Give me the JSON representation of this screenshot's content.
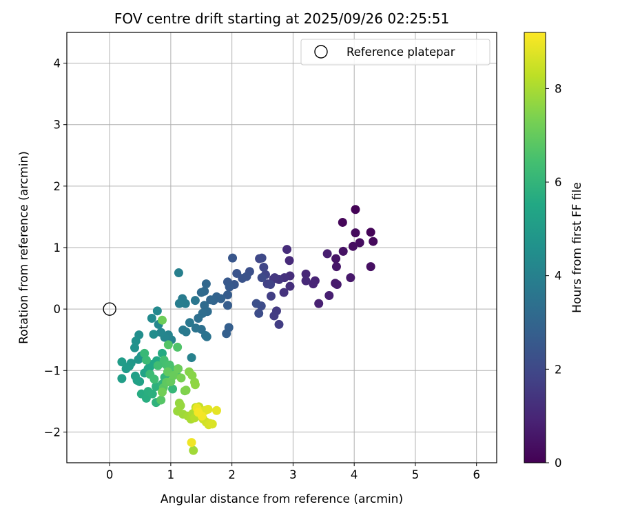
{
  "chart_data": {
    "type": "scatter",
    "title": "FOV centre drift starting at 2025/09/26 02:25:51",
    "xlabel": "Angular distance from reference (arcmin)",
    "ylabel": "Rotation from reference (arcmin)",
    "xlim": [
      -0.7,
      6.33
    ],
    "ylim": [
      -2.5,
      4.5
    ],
    "xticks": [
      0,
      1,
      2,
      3,
      4,
      5,
      6
    ],
    "yticks": [
      -2,
      -1,
      0,
      1,
      2,
      3,
      4
    ],
    "grid": true,
    "legend": {
      "position": "top-right",
      "entries": [
        "Reference platepar"
      ]
    },
    "reference_point": {
      "x": 0,
      "y": 0,
      "label": "Reference platepar"
    },
    "colorbar": {
      "label": "Hours from first FF file",
      "colormap": "viridis",
      "range": [
        0,
        9.2
      ],
      "ticks": [
        0,
        2,
        4,
        6,
        8
      ]
    },
    "points": [
      {
        "x": 4.02,
        "y": 1.62,
        "t": 0.05
      },
      {
        "x": 4.27,
        "y": 1.25,
        "t": 0.1
      },
      {
        "x": 3.81,
        "y": 1.41,
        "t": 0.15
      },
      {
        "x": 4.31,
        "y": 1.1,
        "t": 0.2
      },
      {
        "x": 4.02,
        "y": 1.24,
        "t": 0.25
      },
      {
        "x": 4.09,
        "y": 1.08,
        "t": 0.3
      },
      {
        "x": 3.98,
        "y": 1.02,
        "t": 0.35
      },
      {
        "x": 4.27,
        "y": 0.69,
        "t": 0.4
      },
      {
        "x": 3.82,
        "y": 0.94,
        "t": 0.45
      },
      {
        "x": 3.7,
        "y": 0.82,
        "t": 0.5
      },
      {
        "x": 3.71,
        "y": 0.69,
        "t": 0.55
      },
      {
        "x": 3.94,
        "y": 0.51,
        "t": 0.6
      },
      {
        "x": 3.69,
        "y": 0.42,
        "t": 0.65
      },
      {
        "x": 3.72,
        "y": 0.4,
        "t": 0.7
      },
      {
        "x": 3.56,
        "y": 0.9,
        "t": 0.75
      },
      {
        "x": 3.59,
        "y": 0.22,
        "t": 0.8
      },
      {
        "x": 3.42,
        "y": 0.09,
        "t": 0.85
      },
      {
        "x": 3.36,
        "y": 0.46,
        "t": 0.9
      },
      {
        "x": 3.33,
        "y": 0.41,
        "t": 0.95
      },
      {
        "x": 3.21,
        "y": 0.57,
        "t": 1.0
      },
      {
        "x": 3.21,
        "y": 0.46,
        "t": 1.05
      },
      {
        "x": 2.94,
        "y": 0.79,
        "t": 1.1
      },
      {
        "x": 2.9,
        "y": 0.97,
        "t": 1.15
      },
      {
        "x": 2.95,
        "y": 0.54,
        "t": 1.2
      },
      {
        "x": 2.95,
        "y": 0.37,
        "t": 1.25
      },
      {
        "x": 2.86,
        "y": 0.51,
        "t": 1.3
      },
      {
        "x": 2.85,
        "y": 0.27,
        "t": 1.35
      },
      {
        "x": 2.77,
        "y": 0.48,
        "t": 1.4
      },
      {
        "x": 2.68,
        "y": 0.49,
        "t": 1.45
      },
      {
        "x": 2.7,
        "y": 0.51,
        "t": 1.5
      },
      {
        "x": 2.73,
        "y": -0.03,
        "t": 1.55
      },
      {
        "x": 2.69,
        "y": -0.11,
        "t": 1.6
      },
      {
        "x": 2.77,
        "y": -0.25,
        "t": 1.65
      },
      {
        "x": 2.64,
        "y": 0.21,
        "t": 1.7
      },
      {
        "x": 2.58,
        "y": 0.41,
        "t": 1.75
      },
      {
        "x": 2.63,
        "y": 0.4,
        "t": 1.8
      },
      {
        "x": 2.55,
        "y": 0.56,
        "t": 1.85
      },
      {
        "x": 2.52,
        "y": 0.68,
        "t": 1.9
      },
      {
        "x": 2.45,
        "y": 0.82,
        "t": 1.95
      },
      {
        "x": 2.49,
        "y": 0.83,
        "t": 2.0
      },
      {
        "x": 2.49,
        "y": 0.51,
        "t": 2.05
      },
      {
        "x": 2.48,
        "y": 0.05,
        "t": 2.1
      },
      {
        "x": 2.44,
        "y": -0.07,
        "t": 2.15
      },
      {
        "x": 2.4,
        "y": 0.09,
        "t": 2.2
      },
      {
        "x": 2.29,
        "y": 0.61,
        "t": 2.25
      },
      {
        "x": 2.24,
        "y": 0.53,
        "t": 2.3
      },
      {
        "x": 2.17,
        "y": 0.5,
        "t": 2.35
      },
      {
        "x": 2.08,
        "y": 0.58,
        "t": 2.4
      },
      {
        "x": 2.01,
        "y": 0.83,
        "t": 2.45
      },
      {
        "x": 2.04,
        "y": 0.4,
        "t": 2.5
      },
      {
        "x": 1.93,
        "y": 0.44,
        "t": 2.55
      },
      {
        "x": 1.96,
        "y": 0.36,
        "t": 2.6
      },
      {
        "x": 1.93,
        "y": 0.23,
        "t": 2.65
      },
      {
        "x": 1.93,
        "y": 0.06,
        "t": 2.7
      },
      {
        "x": 1.95,
        "y": -0.3,
        "t": 2.75
      },
      {
        "x": 1.91,
        "y": -0.4,
        "t": 2.8
      },
      {
        "x": 1.82,
        "y": 0.17,
        "t": 2.85
      },
      {
        "x": 1.75,
        "y": 0.2,
        "t": 2.9
      },
      {
        "x": 1.7,
        "y": 0.14,
        "t": 2.95
      },
      {
        "x": 1.65,
        "y": 0.15,
        "t": 3.0
      },
      {
        "x": 1.58,
        "y": 0.41,
        "t": 3.05
      },
      {
        "x": 1.55,
        "y": 0.29,
        "t": 3.1
      },
      {
        "x": 1.5,
        "y": 0.27,
        "t": 3.15
      },
      {
        "x": 1.55,
        "y": 0.06,
        "t": 3.2
      },
      {
        "x": 1.6,
        "y": -0.04,
        "t": 3.25
      },
      {
        "x": 1.52,
        "y": -0.07,
        "t": 3.3
      },
      {
        "x": 1.45,
        "y": -0.15,
        "t": 3.35
      },
      {
        "x": 1.5,
        "y": -0.33,
        "t": 3.4
      },
      {
        "x": 1.57,
        "y": -0.43,
        "t": 3.45
      },
      {
        "x": 1.59,
        "y": -0.45,
        "t": 3.5
      },
      {
        "x": 1.41,
        "y": -0.31,
        "t": 3.55
      },
      {
        "x": 1.4,
        "y": 0.14,
        "t": 3.6
      },
      {
        "x": 1.31,
        "y": -0.22,
        "t": 3.65
      },
      {
        "x": 1.25,
        "y": -0.37,
        "t": 3.7
      },
      {
        "x": 1.2,
        "y": -0.34,
        "t": 3.75
      },
      {
        "x": 1.19,
        "y": 0.17,
        "t": 3.8
      },
      {
        "x": 1.24,
        "y": 0.09,
        "t": 3.85
      },
      {
        "x": 1.14,
        "y": 0.09,
        "t": 3.9
      },
      {
        "x": 1.13,
        "y": 0.59,
        "t": 3.95
      },
      {
        "x": 1.34,
        "y": -0.79,
        "t": 4.0
      },
      {
        "x": 1.01,
        "y": -0.5,
        "t": 4.05
      },
      {
        "x": 0.96,
        "y": -0.42,
        "t": 4.1
      },
      {
        "x": 0.9,
        "y": -0.46,
        "t": 4.15
      },
      {
        "x": 0.84,
        "y": -0.38,
        "t": 4.2
      },
      {
        "x": 0.8,
        "y": -0.25,
        "t": 4.25
      },
      {
        "x": 0.78,
        "y": -0.03,
        "t": 4.3
      },
      {
        "x": 0.69,
        "y": -0.15,
        "t": 4.35
      },
      {
        "x": 0.72,
        "y": -0.41,
        "t": 4.45
      },
      {
        "x": 0.48,
        "y": -0.42,
        "t": 4.5
      },
      {
        "x": 0.43,
        "y": -0.52,
        "t": 4.6
      },
      {
        "x": 0.41,
        "y": -0.63,
        "t": 4.65
      },
      {
        "x": 0.52,
        "y": -0.76,
        "t": 4.75
      },
      {
        "x": 0.47,
        "y": -0.82,
        "t": 4.8
      },
      {
        "x": 0.35,
        "y": -0.88,
        "t": 4.85
      },
      {
        "x": 0.32,
        "y": -0.93,
        "t": 4.9
      },
      {
        "x": 0.27,
        "y": -0.97,
        "t": 5.0
      },
      {
        "x": 0.2,
        "y": -0.86,
        "t": 5.05
      },
      {
        "x": 0.2,
        "y": -1.13,
        "t": 5.1
      },
      {
        "x": 0.42,
        "y": -1.09,
        "t": 5.15
      },
      {
        "x": 0.45,
        "y": -1.16,
        "t": 5.2
      },
      {
        "x": 0.49,
        "y": -1.18,
        "t": 5.25
      },
      {
        "x": 0.57,
        "y": -1.04,
        "t": 5.3
      },
      {
        "x": 0.63,
        "y": -0.97,
        "t": 5.35
      },
      {
        "x": 0.66,
        "y": -0.94,
        "t": 5.4
      },
      {
        "x": 0.7,
        "y": -0.9,
        "t": 5.45
      },
      {
        "x": 0.77,
        "y": -0.84,
        "t": 5.5
      },
      {
        "x": 0.83,
        "y": -0.88,
        "t": 5.55
      },
      {
        "x": 0.86,
        "y": -0.72,
        "t": 5.6
      },
      {
        "x": 0.52,
        "y": -1.38,
        "t": 5.65
      },
      {
        "x": 0.6,
        "y": -1.45,
        "t": 5.7
      },
      {
        "x": 0.63,
        "y": -1.34,
        "t": 5.75
      },
      {
        "x": 0.7,
        "y": -1.38,
        "t": 5.8
      },
      {
        "x": 0.76,
        "y": -1.26,
        "t": 5.85
      },
      {
        "x": 0.76,
        "y": -1.52,
        "t": 5.9
      },
      {
        "x": 0.86,
        "y": -1.22,
        "t": 5.95
      },
      {
        "x": 0.9,
        "y": -1.11,
        "t": 6.0
      },
      {
        "x": 0.96,
        "y": -1.04,
        "t": 6.05
      },
      {
        "x": 1.03,
        "y": -1.3,
        "t": 6.1
      },
      {
        "x": 0.57,
        "y": -0.72,
        "t": 6.15
      },
      {
        "x": 0.6,
        "y": -0.83,
        "t": 6.2
      },
      {
        "x": 0.66,
        "y": -1.06,
        "t": 6.25
      },
      {
        "x": 0.73,
        "y": -1.14,
        "t": 6.3
      },
      {
        "x": 0.79,
        "y": -0.92,
        "t": 6.35
      },
      {
        "x": 0.89,
        "y": -0.83,
        "t": 6.4
      },
      {
        "x": 0.93,
        "y": -0.91,
        "t": 6.45
      },
      {
        "x": 0.98,
        "y": -0.91,
        "t": 6.5
      },
      {
        "x": 1.02,
        "y": -0.98,
        "t": 6.55
      },
      {
        "x": 1.09,
        "y": -1.06,
        "t": 6.6
      },
      {
        "x": 1.11,
        "y": -0.62,
        "t": 6.65
      },
      {
        "x": 0.96,
        "y": -0.58,
        "t": 6.7
      },
      {
        "x": 0.84,
        "y": -1.48,
        "t": 6.75
      },
      {
        "x": 0.88,
        "y": -1.28,
        "t": 6.8
      },
      {
        "x": 0.93,
        "y": -1.19,
        "t": 6.9
      },
      {
        "x": 0.95,
        "y": -1.02,
        "t": 6.95
      },
      {
        "x": 1.0,
        "y": -1.18,
        "t": 7.0
      },
      {
        "x": 1.05,
        "y": -1.08,
        "t": 7.05
      },
      {
        "x": 1.12,
        "y": -0.97,
        "t": 7.1
      },
      {
        "x": 0.86,
        "y": -0.18,
        "t": 7.15
      },
      {
        "x": 0.86,
        "y": -1.35,
        "t": 7.2
      },
      {
        "x": 1.17,
        "y": -1.12,
        "t": 7.3
      },
      {
        "x": 1.23,
        "y": -1.33,
        "t": 7.35
      },
      {
        "x": 1.25,
        "y": -1.32,
        "t": 7.45
      },
      {
        "x": 1.3,
        "y": -1.02,
        "t": 7.5
      },
      {
        "x": 1.35,
        "y": -1.08,
        "t": 7.55
      },
      {
        "x": 1.39,
        "y": -1.19,
        "t": 7.6
      },
      {
        "x": 1.4,
        "y": -1.23,
        "t": 7.65
      },
      {
        "x": 1.14,
        "y": -1.53,
        "t": 7.7
      },
      {
        "x": 1.16,
        "y": -1.57,
        "t": 7.75
      },
      {
        "x": 1.11,
        "y": -1.66,
        "t": 7.8
      },
      {
        "x": 1.2,
        "y": -1.71,
        "t": 7.85
      },
      {
        "x": 1.37,
        "y": -2.3,
        "t": 7.9
      },
      {
        "x": 1.28,
        "y": -1.74,
        "t": 7.95
      },
      {
        "x": 1.33,
        "y": -1.79,
        "t": 8.0
      },
      {
        "x": 1.36,
        "y": -1.7,
        "t": 8.05
      },
      {
        "x": 1.39,
        "y": -1.77,
        "t": 8.15
      },
      {
        "x": 1.41,
        "y": -1.6,
        "t": 8.25
      },
      {
        "x": 1.46,
        "y": -1.59,
        "t": 8.35
      },
      {
        "x": 1.49,
        "y": -1.66,
        "t": 8.45
      },
      {
        "x": 1.53,
        "y": -1.79,
        "t": 8.5
      },
      {
        "x": 1.58,
        "y": -1.84,
        "t": 8.55
      },
      {
        "x": 1.62,
        "y": -1.88,
        "t": 8.6
      },
      {
        "x": 1.64,
        "y": -1.86,
        "t": 8.65
      },
      {
        "x": 1.68,
        "y": -1.87,
        "t": 8.7
      },
      {
        "x": 1.56,
        "y": -1.65,
        "t": 8.75
      },
      {
        "x": 1.61,
        "y": -1.63,
        "t": 8.8
      },
      {
        "x": 1.75,
        "y": -1.65,
        "t": 8.85
      },
      {
        "x": 1.43,
        "y": -1.61,
        "t": 8.95
      },
      {
        "x": 1.34,
        "y": -2.17,
        "t": 9.0
      },
      {
        "x": 1.51,
        "y": -1.74,
        "t": 9.05
      },
      {
        "x": 1.45,
        "y": -1.68,
        "t": 9.1
      }
    ]
  }
}
